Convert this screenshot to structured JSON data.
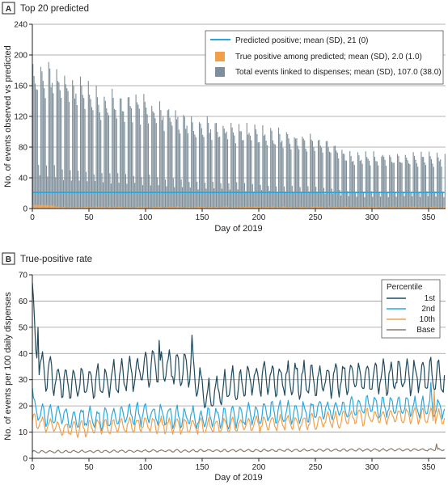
{
  "chart_data": [
    {
      "panel": "A",
      "title": "Top 20 predicted",
      "type": "bar",
      "xlabel": "Day of 2019",
      "ylabel": "No. of events observed vs predicted",
      "xlim": [
        0,
        365
      ],
      "ylim": [
        0,
        240
      ],
      "xticks": [
        0,
        50,
        100,
        150,
        200,
        250,
        300,
        350
      ],
      "yticks": [
        0,
        40,
        80,
        120,
        160,
        200,
        240
      ],
      "grid": true,
      "legend_position": "top-right",
      "colors": {
        "predicted": "#29a8df",
        "true_positive": "#f0a04b",
        "total": "#7f8f99"
      },
      "series": [
        {
          "name": "Predicted positive; mean (SD), 21 (0)",
          "kind": "line",
          "constant": 21
        },
        {
          "name": "True positive among predicted; mean (SD), 2.0 (1.0)",
          "kind": "bar",
          "mean": 2.0,
          "sd": 1.0
        },
        {
          "name": "Total events linked to dispenses; mean (SD), 107.0 (38.0)",
          "kind": "bar",
          "weekly_profile": [
            1.0,
            0.95,
            0.9,
            0.86,
            0.8,
            0.3,
            0.22
          ],
          "weekly_peak_trend": {
            "x": [
              0,
              10,
              30,
              60,
              100,
              140,
              180,
              220,
              260,
              280,
              320,
              364
            ],
            "y": [
              195,
              200,
              180,
              160,
              150,
              125,
              115,
              105,
              95,
              75,
              75,
              75
            ]
          }
        }
      ]
    },
    {
      "panel": "B",
      "title": "True-positive rate",
      "type": "line",
      "xlabel": "Day of 2019",
      "ylabel": "No. of events per 100 daily dispenses",
      "xlim": [
        0,
        365
      ],
      "ylim": [
        0,
        70
      ],
      "xticks": [
        0,
        50,
        100,
        150,
        200,
        250,
        300,
        350
      ],
      "yticks": [
        0,
        10,
        20,
        30,
        40,
        50,
        60,
        70
      ],
      "grid": true,
      "legend_position": "top-right",
      "legend_title": "Percentile",
      "series": [
        {
          "name": "1st",
          "color": "#1e4a5c",
          "anchors_x": [
            0,
            3,
            10,
            30,
            60,
            90,
            110,
            140,
            155,
            175,
            200,
            220,
            260,
            300,
            340,
            364
          ],
          "anchors_y": [
            62,
            40,
            33,
            28,
            29,
            33,
            35,
            34,
            23,
            28,
            30,
            30,
            30,
            31,
            31,
            31
          ],
          "amplitude": 5.5,
          "spikes": [
            [
              0,
              67
            ],
            [
              5,
              50
            ],
            [
              141,
              47
            ],
            [
              112,
              45
            ]
          ]
        },
        {
          "name": "2nd",
          "color": "#29a8df",
          "anchors_x": [
            0,
            5,
            30,
            60,
            100,
            150,
            200,
            250,
            300,
            364
          ],
          "anchors_y": [
            22,
            17,
            16,
            15,
            17,
            15,
            17,
            18,
            20,
            19
          ],
          "amplitude": 3.5,
          "spikes": [
            [
              0,
              27
            ],
            [
              352,
              29
            ]
          ]
        },
        {
          "name": "10th",
          "color": "#f0a04b",
          "anchors_x": [
            0,
            30,
            60,
            100,
            150,
            200,
            250,
            300,
            364
          ],
          "anchors_y": [
            14,
            11,
            12,
            13,
            12,
            13,
            14,
            16,
            16
          ],
          "amplitude": 2.5,
          "spikes": [
            [
              355,
              26
            ]
          ]
        },
        {
          "name": "Base",
          "color": "#8a7d6a",
          "anchors_x": [
            0,
            100,
            200,
            300,
            364
          ],
          "anchors_y": [
            2.5,
            2.8,
            3.0,
            3.2,
            3.3
          ],
          "amplitude": 0.4,
          "spikes": [
            [
              357,
              5.5
            ]
          ]
        }
      ]
    }
  ]
}
